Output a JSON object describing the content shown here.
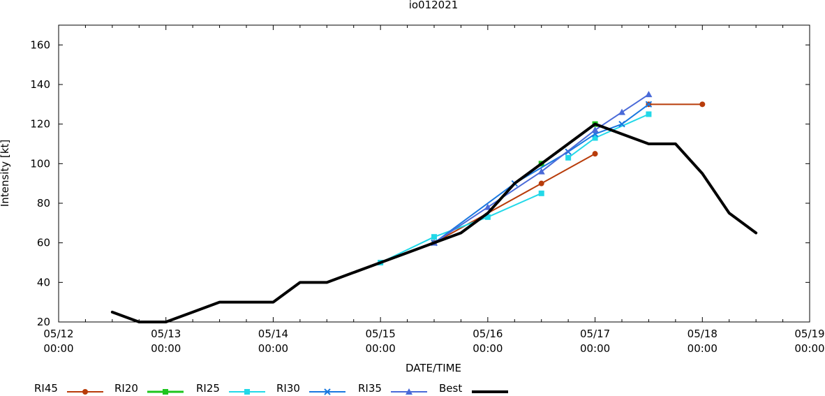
{
  "chart_data": {
    "type": "line",
    "title": "io012021",
    "xlabel": "DATE/TIME",
    "ylabel": "Intensity [kt]",
    "ylim": [
      20,
      170
    ],
    "yticks": [
      20,
      40,
      60,
      80,
      100,
      120,
      140,
      160
    ],
    "xlim_days": [
      "05/12 00:00",
      "05/19 00:00"
    ],
    "xticks": [
      {
        "day": 0,
        "date": "05/12",
        "time": "00:00"
      },
      {
        "day": 1,
        "date": "05/13",
        "time": "00:00"
      },
      {
        "day": 2,
        "date": "05/14",
        "time": "00:00"
      },
      {
        "day": 3,
        "date": "05/15",
        "time": "00:00"
      },
      {
        "day": 4,
        "date": "05/16",
        "time": "00:00"
      },
      {
        "day": 5,
        "date": "05/17",
        "time": "00:00"
      },
      {
        "day": 6,
        "date": "05/18",
        "time": "00:00"
      },
      {
        "day": 7,
        "date": "05/19",
        "time": "00:00"
      }
    ],
    "grid": false,
    "legend_position": "bottom",
    "series": [
      {
        "name": "RI45",
        "color": "#b83c0a",
        "marker": "circle",
        "width": 2,
        "points": [
          [
            "05/15 12:00",
            60
          ],
          [
            "05/16 12:00",
            90
          ],
          [
            "05/17 00:00",
            105
          ]
        ]
      },
      {
        "name": "RI45",
        "color": "#b83c0a",
        "marker": "circle",
        "width": 2,
        "points": [
          [
            "05/17 12:00",
            130
          ],
          [
            "05/18 00:00",
            130
          ]
        ]
      },
      {
        "name": "RI20",
        "color": "#1ec51e",
        "marker": "square",
        "width": 3,
        "points": [
          [
            "05/16 12:00",
            100
          ],
          [
            "05/17 00:00",
            120
          ]
        ]
      },
      {
        "name": "RI25",
        "color": "#22d8e8",
        "marker": "square",
        "width": 2,
        "points": [
          [
            "05/15 00:00",
            50
          ],
          [
            "05/15 12:00",
            63
          ],
          [
            "05/16 00:00",
            73
          ],
          [
            "05/16 12:00",
            85
          ]
        ]
      },
      {
        "name": "RI25",
        "color": "#22d8e8",
        "marker": "square",
        "width": 2,
        "points": [
          [
            "05/16 18:00",
            103
          ],
          [
            "05/17 00:00",
            113
          ],
          [
            "05/17 12:00",
            125
          ]
        ]
      },
      {
        "name": "RI30",
        "color": "#1a78e0",
        "marker": "x",
        "width": 2,
        "points": [
          [
            "05/15 12:00",
            60
          ],
          [
            "05/16 06:00",
            90
          ],
          [
            "05/16 18:00",
            106
          ],
          [
            "05/17 00:00",
            115
          ],
          [
            "05/17 06:00",
            120
          ],
          [
            "05/17 12:00",
            130
          ]
        ]
      },
      {
        "name": "RI35",
        "color": "#4a6ad8",
        "marker": "triangle",
        "width": 2,
        "points": [
          [
            "05/15 12:00",
            60
          ],
          [
            "05/16 00:00",
            78
          ],
          [
            "05/16 12:00",
            96
          ],
          [
            "05/17 00:00",
            117
          ],
          [
            "05/17 06:00",
            126
          ],
          [
            "05/17 12:00",
            135
          ]
        ]
      },
      {
        "name": "Best",
        "color": "#000000",
        "marker": "none",
        "width": 4,
        "points": [
          [
            "05/12 12:00",
            25
          ],
          [
            "05/12 18:00",
            20
          ],
          [
            "05/13 00:00",
            20
          ],
          [
            "05/13 06:00",
            25
          ],
          [
            "05/13 12:00",
            30
          ],
          [
            "05/13 18:00",
            30
          ],
          [
            "05/14 00:00",
            30
          ],
          [
            "05/14 06:00",
            40
          ],
          [
            "05/14 12:00",
            40
          ],
          [
            "05/14 18:00",
            45
          ],
          [
            "05/15 00:00",
            50
          ],
          [
            "05/15 06:00",
            55
          ],
          [
            "05/15 12:00",
            60
          ],
          [
            "05/15 18:00",
            65
          ],
          [
            "05/16 00:00",
            75
          ],
          [
            "05/16 06:00",
            90
          ],
          [
            "05/16 12:00",
            100
          ],
          [
            "05/16 18:00",
            110
          ],
          [
            "05/17 00:00",
            120
          ],
          [
            "05/17 06:00",
            115
          ],
          [
            "05/17 12:00",
            110
          ],
          [
            "05/17 18:00",
            110
          ],
          [
            "05/18 00:00",
            95
          ],
          [
            "05/18 06:00",
            75
          ],
          [
            "05/18 12:00",
            65
          ]
        ]
      }
    ],
    "legend": [
      {
        "name": "RI45",
        "color": "#b83c0a",
        "marker": "circle",
        "width": 2
      },
      {
        "name": "RI20",
        "color": "#1ec51e",
        "marker": "square",
        "width": 3
      },
      {
        "name": "RI25",
        "color": "#22d8e8",
        "marker": "square",
        "width": 2
      },
      {
        "name": "RI30",
        "color": "#1a78e0",
        "marker": "x",
        "width": 2
      },
      {
        "name": "RI35",
        "color": "#4a6ad8",
        "marker": "triangle",
        "width": 2
      },
      {
        "name": "Best",
        "color": "#000000",
        "marker": "none",
        "width": 4
      }
    ]
  }
}
